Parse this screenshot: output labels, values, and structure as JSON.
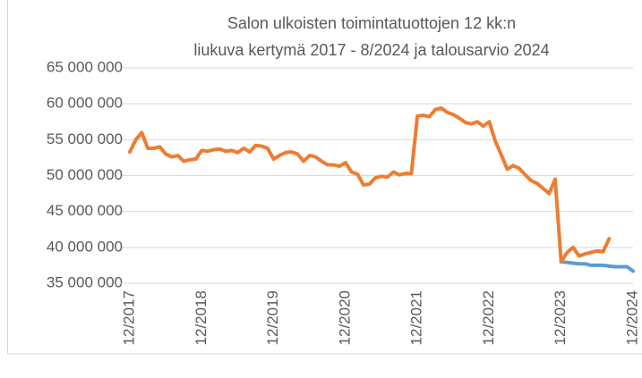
{
  "chart_data": {
    "type": "line",
    "title": "Salon ulkoisten toimintatuottojen 12 kk:n",
    "subtitle": "liukuva kertymä 2017 - 8/2024 ja talousarvio 2024",
    "categories": [
      "12/2017",
      null,
      null,
      null,
      null,
      null,
      null,
      null,
      null,
      null,
      null,
      null,
      "12/2018",
      null,
      null,
      null,
      null,
      null,
      null,
      null,
      null,
      null,
      null,
      null,
      "12/2019",
      null,
      null,
      null,
      null,
      null,
      null,
      null,
      null,
      null,
      null,
      null,
      "12/2020",
      null,
      null,
      null,
      null,
      null,
      null,
      null,
      null,
      null,
      null,
      null,
      "12/2021",
      null,
      null,
      null,
      null,
      null,
      null,
      null,
      null,
      null,
      null,
      null,
      "12/2022",
      null,
      null,
      null,
      null,
      null,
      null,
      null,
      null,
      null,
      null,
      null,
      "12/2023",
      null,
      null,
      null,
      null,
      null,
      null,
      null,
      null,
      null,
      null,
      null,
      "12/2024"
    ],
    "series": [
      {
        "color": "#ed7d31",
        "values": [
          53300000,
          55000000,
          56000000,
          53800000,
          53800000,
          54000000,
          53000000,
          52600000,
          52800000,
          52000000,
          52200000,
          52300000,
          53500000,
          53400000,
          53600000,
          53700000,
          53400000,
          53500000,
          53200000,
          53800000,
          53300000,
          54200000,
          54100000,
          53800000,
          52300000,
          52800000,
          53200000,
          53300000,
          53000000,
          52000000,
          52800000,
          52600000,
          52000000,
          51500000,
          51500000,
          51300000,
          51800000,
          50500000,
          50200000,
          48700000,
          48800000,
          49700000,
          49900000,
          49800000,
          50500000,
          50100000,
          50300000,
          50300000,
          58300000,
          58400000,
          58200000,
          59200000,
          59400000,
          58800000,
          58500000,
          58000000,
          57400000,
          57200000,
          57500000,
          56900000,
          57500000,
          54800000,
          52900000,
          50900000,
          51400000,
          51000000,
          50100000,
          49300000,
          48900000,
          48200000,
          47500000,
          49500000,
          38000000,
          39300000,
          40000000,
          38800000,
          39100000,
          39300000,
          39500000,
          39400000,
          41200000,
          null,
          null,
          null,
          null
        ]
      },
      {
        "color": "#5b9bd5",
        "values": [
          null,
          null,
          null,
          null,
          null,
          null,
          null,
          null,
          null,
          null,
          null,
          null,
          null,
          null,
          null,
          null,
          null,
          null,
          null,
          null,
          null,
          null,
          null,
          null,
          null,
          null,
          null,
          null,
          null,
          null,
          null,
          null,
          null,
          null,
          null,
          null,
          null,
          null,
          null,
          null,
          null,
          null,
          null,
          null,
          null,
          null,
          null,
          null,
          null,
          null,
          null,
          null,
          null,
          null,
          null,
          null,
          null,
          null,
          null,
          null,
          null,
          null,
          null,
          null,
          null,
          null,
          null,
          null,
          null,
          null,
          null,
          null,
          38000000,
          37900000,
          37800000,
          37700000,
          37700000,
          37500000,
          37500000,
          37500000,
          37400000,
          37300000,
          37300000,
          37300000,
          36700000
        ]
      }
    ],
    "ylim": [
      35000000,
      65000000
    ],
    "yticks": [
      {
        "value": 35000000,
        "label": "35 000 000"
      },
      {
        "value": 40000000,
        "label": "40 000 000"
      },
      {
        "value": 45000000,
        "label": "45 000 000"
      },
      {
        "value": 50000000,
        "label": "50 000 000"
      },
      {
        "value": 55000000,
        "label": "55 000 000"
      },
      {
        "value": 60000000,
        "label": "60 000 000"
      },
      {
        "value": 65000000,
        "label": "65 000 000"
      }
    ],
    "grid": true
  }
}
